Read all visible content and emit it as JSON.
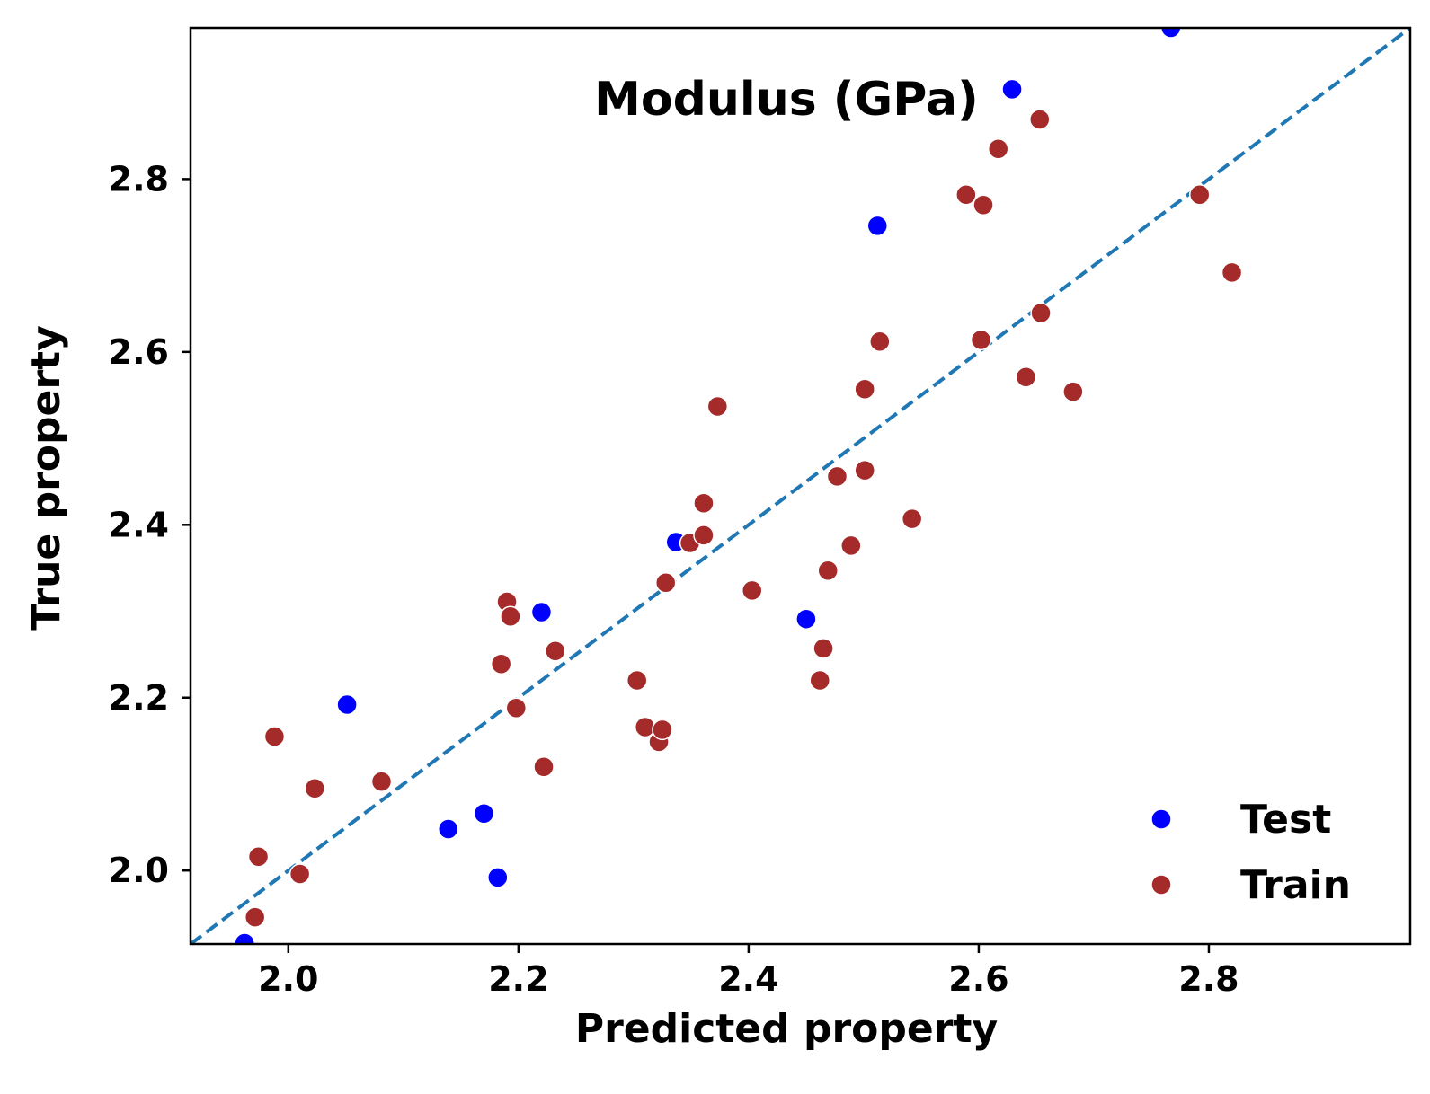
{
  "chart_data": {
    "type": "scatter",
    "title": "Modulus (GPa)",
    "xlabel": "Predicted property",
    "ylabel": "True property",
    "xlim": [
      1.915,
      2.975
    ],
    "ylim": [
      1.915,
      2.975
    ],
    "xticks": [
      2.0,
      2.2,
      2.4,
      2.6,
      2.8
    ],
    "yticks": [
      2.0,
      2.2,
      2.4,
      2.6,
      2.8
    ],
    "xtick_labels": [
      "2.0",
      "2.2",
      "2.4",
      "2.6",
      "2.8"
    ],
    "ytick_labels": [
      "2.0",
      "2.2",
      "2.4",
      "2.6",
      "2.8"
    ],
    "grid": false,
    "legend_position": "lower-right",
    "reference_line": {
      "style": "dashed",
      "color": "#1f77b4",
      "from": [
        1.915,
        1.915
      ],
      "to": [
        2.975,
        2.975
      ]
    },
    "series": [
      {
        "name": "Test",
        "color": "#0000ff",
        "points": [
          [
            1.962,
            1.916
          ],
          [
            2.051,
            2.192
          ],
          [
            2.139,
            2.048
          ],
          [
            2.17,
            2.066
          ],
          [
            2.182,
            1.992
          ],
          [
            2.22,
            2.299
          ],
          [
            2.337,
            2.38
          ],
          [
            2.45,
            2.291
          ],
          [
            2.512,
            2.746
          ],
          [
            2.629,
            2.904
          ],
          [
            2.767,
            2.975
          ]
        ]
      },
      {
        "name": "Train",
        "color": "#a52a2a",
        "points": [
          [
            1.971,
            1.946
          ],
          [
            1.974,
            2.016
          ],
          [
            1.988,
            2.155
          ],
          [
            2.01,
            1.996
          ],
          [
            2.023,
            2.095
          ],
          [
            2.081,
            2.103
          ],
          [
            2.185,
            2.239
          ],
          [
            2.19,
            2.311
          ],
          [
            2.193,
            2.294
          ],
          [
            2.198,
            2.188
          ],
          [
            2.222,
            2.12
          ],
          [
            2.232,
            2.254
          ],
          [
            2.303,
            2.22
          ],
          [
            2.31,
            2.166
          ],
          [
            2.322,
            2.149
          ],
          [
            2.325,
            2.163
          ],
          [
            2.328,
            2.333
          ],
          [
            2.349,
            2.379
          ],
          [
            2.361,
            2.388
          ],
          [
            2.361,
            2.425
          ],
          [
            2.373,
            2.537
          ],
          [
            2.403,
            2.324
          ],
          [
            2.462,
            2.22
          ],
          [
            2.465,
            2.257
          ],
          [
            2.469,
            2.347
          ],
          [
            2.477,
            2.456
          ],
          [
            2.489,
            2.376
          ],
          [
            2.501,
            2.463
          ],
          [
            2.501,
            2.557
          ],
          [
            2.514,
            2.612
          ],
          [
            2.542,
            2.407
          ],
          [
            2.589,
            2.782
          ],
          [
            2.602,
            2.614
          ],
          [
            2.604,
            2.77
          ],
          [
            2.617,
            2.835
          ],
          [
            2.641,
            2.571
          ],
          [
            2.653,
            2.869
          ],
          [
            2.654,
            2.645
          ],
          [
            2.682,
            2.554
          ],
          [
            2.792,
            2.782
          ],
          [
            2.82,
            2.692
          ]
        ]
      }
    ]
  }
}
